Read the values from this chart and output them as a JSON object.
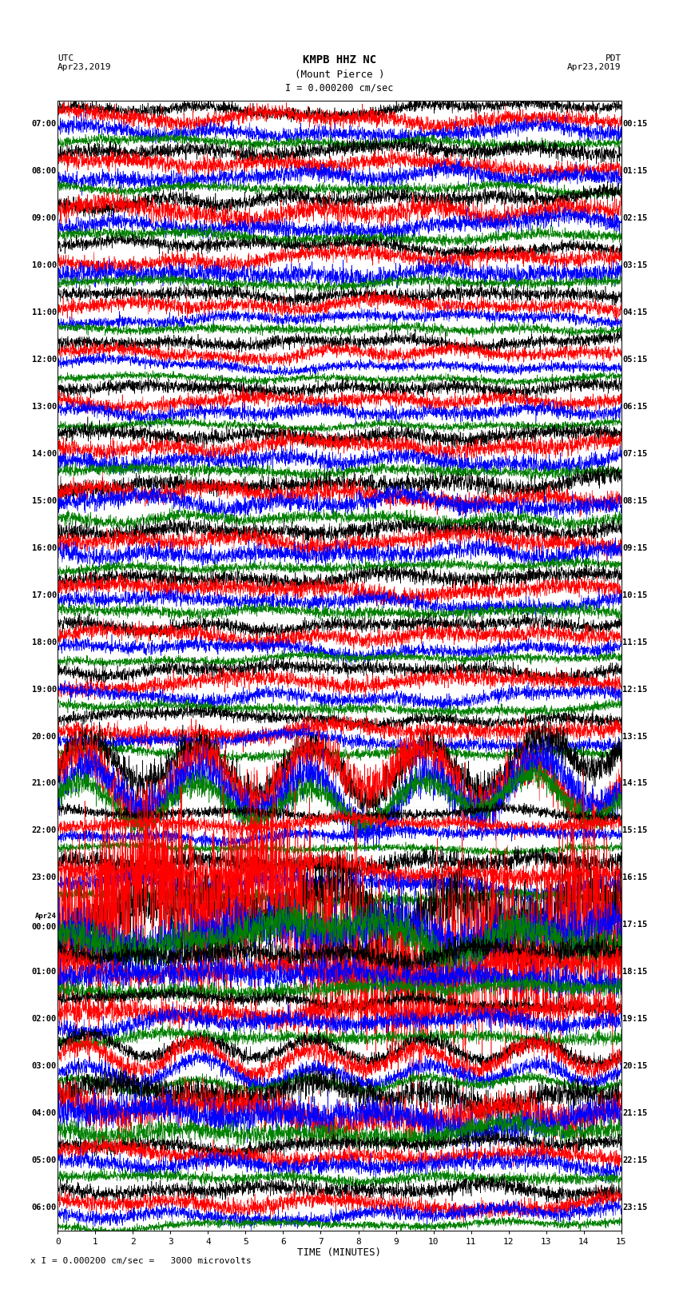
{
  "title_line1": "KMPB HHZ NC",
  "title_line2": "(Mount Pierce )",
  "scale_label": "I = 0.000200 cm/sec",
  "utc_label": "UTC\nApr23,2019",
  "pdt_label": "PDT\nApr23,2019",
  "xlabel": "TIME (MINUTES)",
  "footer": "x I = 0.000200 cm/sec =   3000 microvolts",
  "left_times": [
    "07:00",
    "08:00",
    "09:00",
    "10:00",
    "11:00",
    "12:00",
    "13:00",
    "14:00",
    "15:00",
    "16:00",
    "17:00",
    "18:00",
    "19:00",
    "20:00",
    "21:00",
    "22:00",
    "23:00",
    "Apr24\n00:00",
    "01:00",
    "02:00",
    "03:00",
    "04:00",
    "05:00",
    "06:00"
  ],
  "right_times": [
    "00:15",
    "01:15",
    "02:15",
    "03:15",
    "04:15",
    "05:15",
    "06:15",
    "07:15",
    "08:15",
    "09:15",
    "10:15",
    "11:15",
    "12:15",
    "13:15",
    "14:15",
    "15:15",
    "16:15",
    "17:15",
    "18:15",
    "19:15",
    "20:15",
    "21:15",
    "22:15",
    "23:15"
  ],
  "n_rows": 24,
  "traces_per_row": 4,
  "colors": [
    "#000000",
    "#ff0000",
    "#0000ff",
    "#008000"
  ],
  "fig_width": 8.5,
  "fig_height": 16.13,
  "bg_color": "#ffffff",
  "noise_seed": 42,
  "n_points": 3000,
  "t_max": 15.0,
  "base_amplitude": 0.85,
  "row_amplitude_multipliers": [
    1.0,
    1.0,
    1.2,
    1.0,
    0.8,
    0.8,
    0.8,
    1.0,
    1.2,
    1.0,
    1.0,
    0.9,
    1.0,
    1.0,
    2.5,
    0.8,
    1.2,
    6.0,
    1.5,
    1.2,
    1.0,
    2.0,
    1.0,
    1.0
  ],
  "trace_amplitude_multipliers": [
    1.0,
    1.2,
    1.1,
    0.7
  ],
  "earthquake_row": 17,
  "earthquake_red_amp": 12.0,
  "earthquake_black_amp": 4.0,
  "low_freq_rows": [
    14,
    20
  ],
  "low_freq_amp": 2.0,
  "low_freq_period": 3.0
}
